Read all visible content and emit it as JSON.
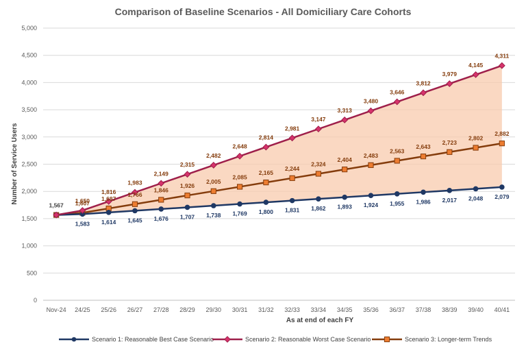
{
  "chart_data": {
    "type": "line",
    "title": "Comparison of Baseline Scenarios - All Domiciliary Care Cohorts",
    "xlabel": "As at end of each FY",
    "ylabel": "Number of Service Users",
    "ylim": [
      0,
      5000
    ],
    "yticks": [
      0,
      500,
      1000,
      1500,
      2000,
      2500,
      3000,
      3500,
      4000,
      4500,
      5000
    ],
    "ytick_labels": [
      "0",
      "500",
      "1,000",
      "1,500",
      "2,000",
      "2,500",
      "3,000",
      "3,500",
      "4,000",
      "4,500",
      "5,000"
    ],
    "grid": true,
    "legend_position": "bottom",
    "categories": [
      "Nov-24",
      "24/25",
      "25/26",
      "26/27",
      "27/28",
      "28/29",
      "29/30",
      "30/31",
      "31/32",
      "32/33",
      "33/34",
      "34/35",
      "35/36",
      "36/37",
      "37/38",
      "38/39",
      "39/40",
      "40/41"
    ],
    "start_label": "1,567",
    "series": [
      {
        "name": "Scenario 1: Reasonable Best Case Scenario",
        "color": "#1f3864",
        "marker": "circle",
        "values": [
          1567,
          1583,
          1614,
          1645,
          1676,
          1707,
          1738,
          1769,
          1800,
          1831,
          1862,
          1893,
          1924,
          1955,
          1986,
          2017,
          2048,
          2079
        ],
        "labels": [
          "",
          "1,583",
          "1,614",
          "1,645",
          "1,676",
          "1,707",
          "1,738",
          "1,769",
          "1,800",
          "1,831",
          "1,862",
          "1,893",
          "1,924",
          "1,955",
          "1,986",
          "2,017",
          "2,048",
          "2,079"
        ]
      },
      {
        "name": "Scenario 2: Reasonable Worst Case Scenario",
        "color": "#9e1f4a",
        "marker": "diamond",
        "values": [
          1567,
          1650,
          1816,
          1983,
          2149,
          2315,
          2482,
          2648,
          2814,
          2981,
          3147,
          3313,
          3480,
          3646,
          3812,
          3979,
          4145,
          4311
        ],
        "labels": [
          "",
          "1,650",
          "1,816",
          "1,983",
          "2,149",
          "2,315",
          "2,482",
          "2,648",
          "2,814",
          "2,981",
          "3,147",
          "3,313",
          "3,480",
          "3,646",
          "3,812",
          "3,979",
          "4,145",
          "4,311"
        ]
      },
      {
        "name": "Scenario 3: Longer-term Trends",
        "color": "#843c0c",
        "marker_fill": "#ed7d31",
        "marker": "square",
        "values": [
          1567,
          1607,
          1687,
          1766,
          1846,
          1926,
          2005,
          2085,
          2165,
          2244,
          2324,
          2404,
          2483,
          2563,
          2643,
          2723,
          2802,
          2882
        ],
        "labels": [
          "",
          "1,607",
          "1,687",
          "1,766",
          "1,846",
          "1,926",
          "2,005",
          "2,085",
          "2,165",
          "2,244",
          "2,324",
          "2,404",
          "2,483",
          "2,563",
          "2,643",
          "2,723",
          "2,802",
          "2,882"
        ]
      }
    ],
    "band": {
      "between": [
        "Scenario 1: Reasonable Best Case Scenario",
        "Scenario 2: Reasonable Worst Case Scenario"
      ],
      "color": "#f8cbad"
    }
  }
}
